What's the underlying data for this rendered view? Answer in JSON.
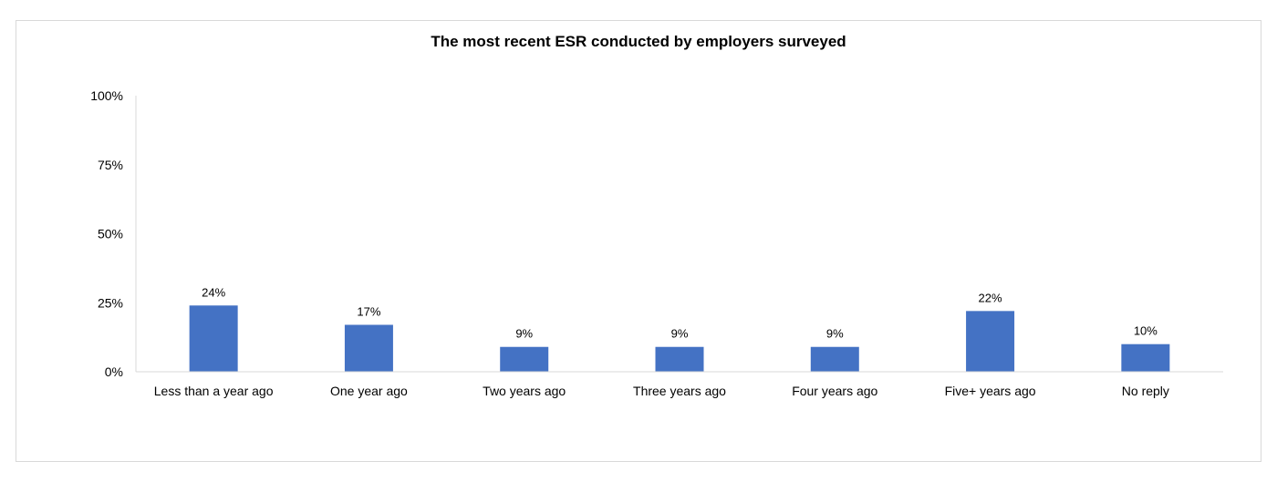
{
  "chart_data": {
    "type": "bar",
    "title": "The most recent ESR conducted by employers surveyed",
    "xlabel": "",
    "ylabel": "",
    "categories": [
      "Less than a year ago",
      "One year ago",
      "Two years ago",
      "Three years ago",
      "Four years ago",
      "Five+ years ago",
      "No reply"
    ],
    "values": [
      24,
      17,
      9,
      9,
      9,
      22,
      10
    ],
    "data_labels": [
      "24%",
      "17%",
      "9%",
      "9%",
      "9%",
      "22%",
      "10%"
    ],
    "ylim": [
      0,
      100
    ],
    "yticks": [
      0,
      25,
      50,
      75,
      100
    ],
    "ytick_labels": [
      "0%",
      "25%",
      "50%",
      "75%",
      "100%"
    ],
    "grid": false,
    "legend": "none",
    "bar_color": "#4472c4"
  }
}
